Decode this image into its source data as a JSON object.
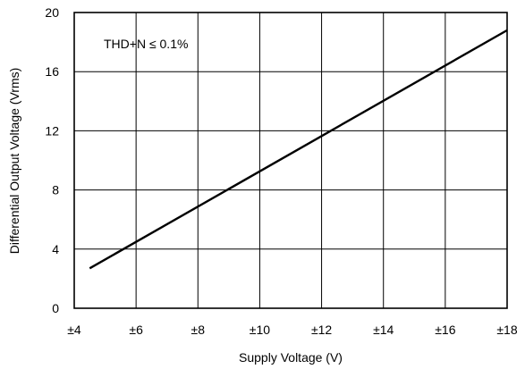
{
  "chart_data": {
    "type": "line",
    "title": "",
    "xlabel": "Supply Voltage (V)",
    "ylabel": "Differential Output Voltage (Vrms)",
    "annotation": "THD+N ≤ 0.1%",
    "xlim": [
      4,
      18
    ],
    "ylim": [
      0,
      20
    ],
    "xticks": [
      4,
      6,
      8,
      10,
      12,
      14,
      16,
      18
    ],
    "xtick_labels": [
      "±4",
      "±6",
      "±8",
      "±10",
      "±12",
      "±14",
      "±16",
      "±18"
    ],
    "yticks": [
      0,
      4,
      8,
      12,
      16,
      20
    ],
    "ytick_labels": [
      "0",
      "4",
      "8",
      "12",
      "16",
      "20"
    ],
    "grid": true,
    "legend": "none",
    "series": [
      {
        "x": [
          4.5,
          18.0
        ],
        "y": [
          2.7,
          18.8
        ]
      }
    ]
  }
}
